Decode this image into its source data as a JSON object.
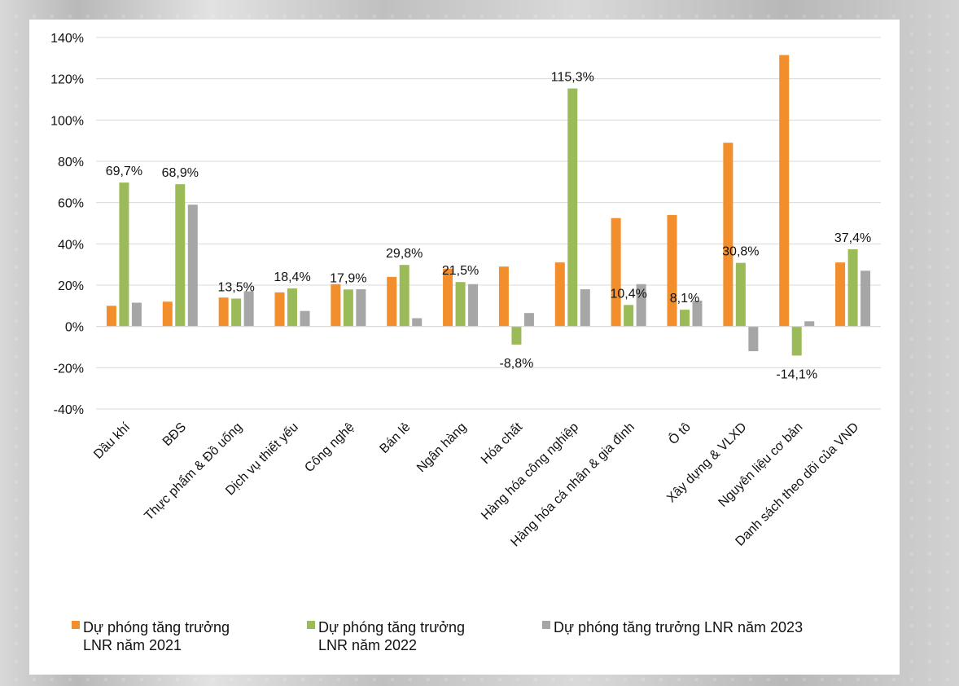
{
  "chart_data": {
    "type": "bar",
    "categories": [
      "Dầu khí",
      "BĐS",
      "Thực phẩm & Đồ uống",
      "Dịch vụ thiết yếu",
      "Công nghệ",
      "Bán lẻ",
      "Ngân hàng",
      "Hóa chất",
      "Hàng hóa công nghiệp",
      "Hàng hóa cá nhân & gia đình",
      "Ô tô",
      "Xây dựng & VLXD",
      "Nguyên liệu cơ bản",
      "Danh sách theo dõi của VND"
    ],
    "series": [
      {
        "name": "Dự phóng tăng trưởng LNR năm 2021",
        "legend_lines": [
          "Dự phóng tăng trưởng",
          "LNR năm 2021"
        ],
        "color": "#f28e2b",
        "values": [
          10.0,
          12.0,
          14.0,
          16.5,
          20.5,
          24.0,
          28.0,
          29.0,
          31.0,
          52.5,
          54.0,
          89.0,
          131.5,
          31.0
        ]
      },
      {
        "name": "Dự phóng tăng trưởng LNR năm 2022",
        "legend_lines": [
          "Dự phóng tăng trưởng",
          "LNR năm 2022"
        ],
        "color": "#9bbb59",
        "values": [
          69.7,
          68.9,
          13.5,
          18.4,
          17.9,
          29.8,
          21.5,
          -8.8,
          115.3,
          10.4,
          8.1,
          30.8,
          -14.1,
          37.4
        ],
        "data_labels": [
          "69,7%",
          "68,9%",
          "13,5%",
          "18,4%",
          "17,9%",
          "29,8%",
          "21,5%",
          "-8,8%",
          "115,3%",
          "10,4%",
          "8,1%",
          "30,8%",
          "-14,1%",
          "37,4%"
        ]
      },
      {
        "name": "Dự phóng tăng trưởng LNR năm 2023",
        "legend_lines": [
          "Dự phóng tăng trưởng LNR năm 2023"
        ],
        "color": "#a6a6a6",
        "values": [
          11.5,
          59.0,
          17.0,
          7.5,
          18.0,
          4.0,
          20.5,
          6.5,
          18.0,
          20.5,
          12.5,
          -12.0,
          2.5,
          27.0
        ]
      }
    ],
    "y_ticks": [
      {
        "value": 140,
        "label": "140%"
      },
      {
        "value": 120,
        "label": "120%"
      },
      {
        "value": 100,
        "label": "100%"
      },
      {
        "value": 80,
        "label": "80%"
      },
      {
        "value": 60,
        "label": "60%"
      },
      {
        "value": 40,
        "label": "40%"
      },
      {
        "value": 20,
        "label": "20%"
      },
      {
        "value": 0,
        "label": "0%"
      },
      {
        "value": -20,
        "label": "-20%"
      },
      {
        "value": -40,
        "label": "-40%"
      }
    ],
    "ylim": [
      -40,
      140
    ],
    "grid": true,
    "legend_position": "bottom"
  }
}
